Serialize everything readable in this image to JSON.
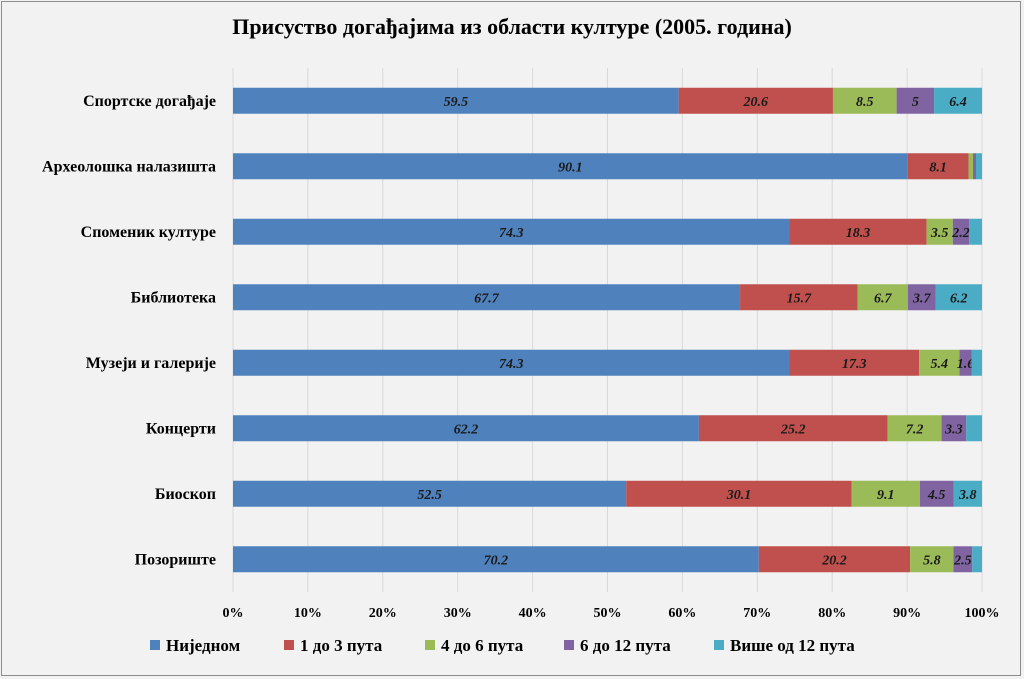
{
  "chart_data": {
    "type": "bar",
    "orientation": "horizontal",
    "stacked": "percent",
    "title": "Присуство догађајима из области културе (2005. година)",
    "categories": [
      "Спортске догађаје",
      "Археолошка налазишта",
      "Споменик културе",
      "Библиотека",
      "Музеји и галерије",
      "Концерти",
      "Биоскоп",
      "Позориште"
    ],
    "series": [
      {
        "name": "Ниједном",
        "color": "#4f81bd",
        "values": [
          59.5,
          90.1,
          74.3,
          67.7,
          74.3,
          62.2,
          52.5,
          70.2
        ],
        "labels": [
          "59.5",
          "90.1",
          "74.3",
          "67.7",
          "74.3",
          "62.2",
          "52.5",
          "70.2"
        ]
      },
      {
        "name": "1 до 3 пута",
        "color": "#c0504d",
        "values": [
          20.6,
          8.1,
          18.3,
          15.7,
          17.3,
          25.2,
          30.1,
          20.2
        ],
        "labels": [
          "20.6",
          "8.1",
          "18.3",
          "15.7",
          "17.3",
          "25.2",
          "30.1",
          "20.2"
        ]
      },
      {
        "name": "4 до 6 пута",
        "color": "#9bbb59",
        "values": [
          8.5,
          0.6,
          3.5,
          6.7,
          5.4,
          7.2,
          9.1,
          5.8
        ],
        "labels": [
          "8.5",
          "",
          "3.5",
          "6.7",
          "5.4",
          "7.2",
          "9.1",
          "5.8"
        ]
      },
      {
        "name": "6 до 12 пута",
        "color": "#8064a2",
        "values": [
          5,
          0.4,
          2.2,
          3.7,
          1.6,
          3.3,
          4.5,
          2.5
        ],
        "labels": [
          "5",
          "",
          "2.2",
          "3.7",
          "1.6",
          "3.3",
          "4.5",
          "2.5"
        ]
      },
      {
        "name": "Више од 12 пута",
        "color": "#4bacc6",
        "values": [
          6.4,
          0.8,
          1.7,
          6.2,
          1.4,
          2.1,
          3.8,
          1.3
        ],
        "labels": [
          "6.4",
          "",
          "",
          "6.2",
          "",
          "",
          "3.8",
          ""
        ]
      }
    ],
    "x_ticks": [
      "0%",
      "10%",
      "20%",
      "30%",
      "40%",
      "50%",
      "60%",
      "70%",
      "80%",
      "90%",
      "100%"
    ],
    "xlim": [
      0,
      100
    ],
    "grid": true,
    "legend_position": "bottom"
  }
}
